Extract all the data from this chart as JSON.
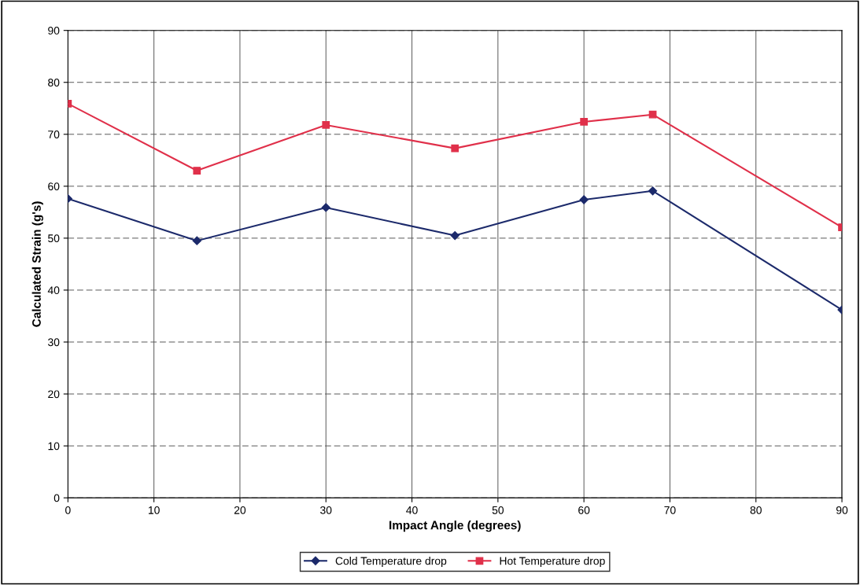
{
  "chart_data": {
    "type": "line",
    "xlabel": "Impact Angle (degrees)",
    "ylabel": "Calculated Strain (g's)",
    "x": [
      0,
      15,
      30,
      45,
      60,
      68,
      90
    ],
    "series": [
      {
        "name": "Cold Temperature drop",
        "color": "#1c2a6b",
        "marker": "diamond",
        "values": [
          57.6,
          49.5,
          55.9,
          50.5,
          57.4,
          59.1,
          36.2
        ]
      },
      {
        "name": "Hot Temperature drop",
        "color": "#e0304a",
        "marker": "square",
        "values": [
          75.9,
          63.0,
          71.8,
          67.3,
          72.4,
          73.8,
          52.1
        ]
      }
    ],
    "xlim": [
      0,
      90
    ],
    "xticks": [
      0,
      10,
      20,
      30,
      40,
      50,
      60,
      70,
      80,
      90
    ],
    "ylim": [
      0,
      90
    ],
    "yticks": [
      0,
      10,
      20,
      30,
      40,
      50,
      60,
      70,
      80,
      90
    ],
    "grid": true,
    "legend": "bottom",
    "line_style": "solid"
  }
}
